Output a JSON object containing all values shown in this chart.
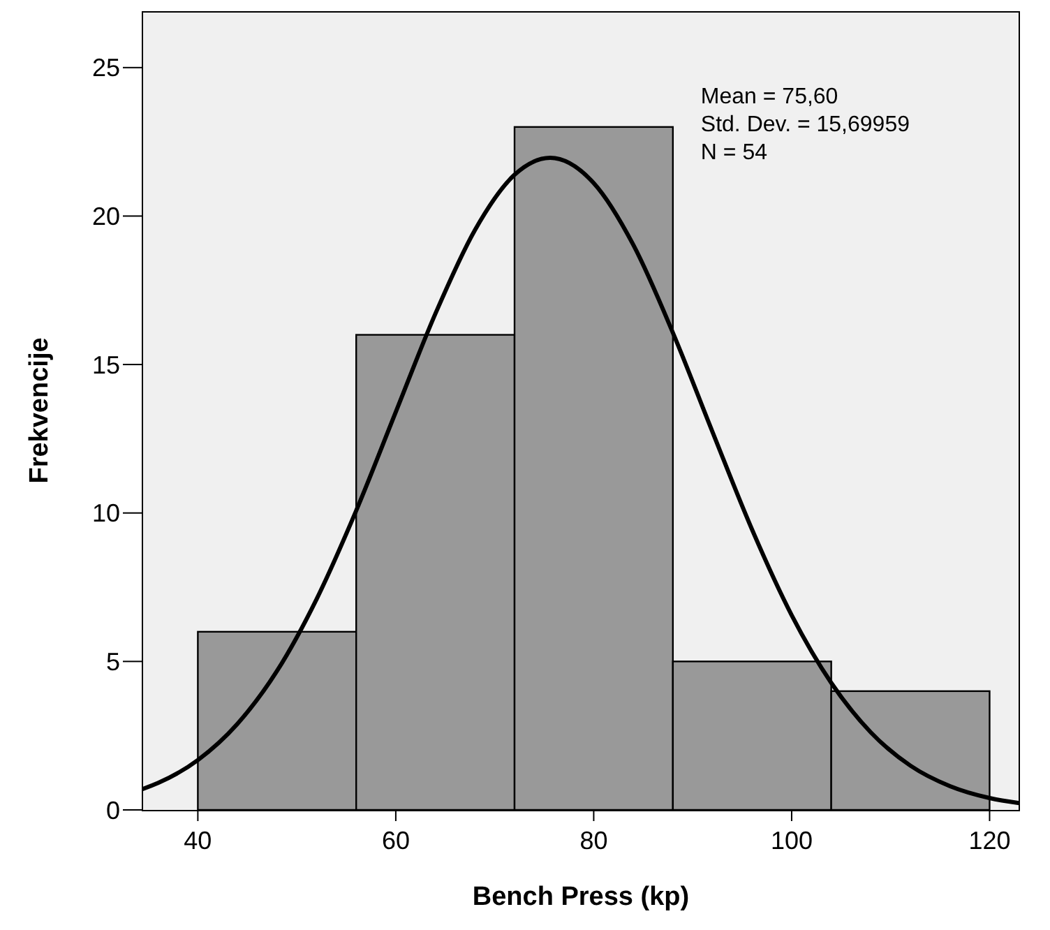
{
  "chart_data": {
    "type": "histogram",
    "xlabel": "Bench Press (kp)",
    "ylabel": "Frekvencije",
    "bins": [
      40,
      56,
      72,
      88,
      104,
      120
    ],
    "values": [
      6,
      16,
      23,
      5,
      4
    ],
    "color": "#999999",
    "series": [
      {
        "type": "line",
        "color": "#000000",
        "x": [
          34.4,
          36,
          40,
          44,
          48,
          52,
          56,
          60,
          64,
          68,
          72,
          75.6,
          80,
          84,
          88,
          92,
          96,
          100,
          104,
          108,
          112,
          116,
          120,
          123
        ],
        "values": [
          0.7,
          0.91,
          1.68,
          2.9,
          4.68,
          7.1,
          10.08,
          13.4,
          16.71,
          19.53,
          21.39,
          21.96,
          21.11,
          19.03,
          16.07,
          12.73,
          9.44,
          6.56,
          4.28,
          2.61,
          1.49,
          0.8,
          0.4,
          0.23
        ]
      }
    ],
    "xlim": [
      34.4,
      123
    ],
    "ylim": [
      0,
      26.9
    ],
    "xticks": [
      40,
      60,
      80,
      100,
      120
    ],
    "yticks": [
      0,
      5,
      10,
      15,
      20,
      25
    ],
    "annotations": [
      "Mean = 75,60",
      "Std. Dev. = 15,69959",
      "N = 54"
    ],
    "grid": false,
    "marker": "none",
    "line_style": "solid"
  }
}
